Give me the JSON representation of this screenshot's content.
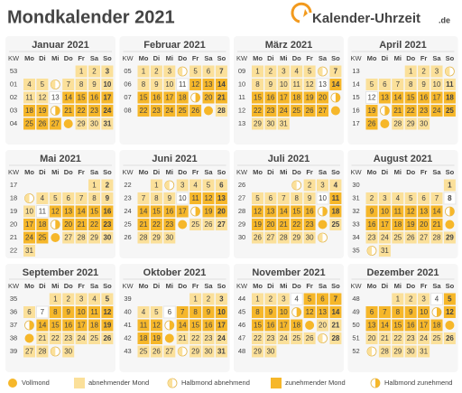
{
  "header": {
    "title": "Mondkalender 2021",
    "logo_name": "Kalender-Uhrzeit",
    "logo_tld": ".de"
  },
  "weekdays": [
    "KW",
    "Mo",
    "Di",
    "Mi",
    "Do",
    "Fr",
    "Sa",
    "So"
  ],
  "colors": {
    "a": "#fbe09a",
    "z": "#f6b72a",
    "n": "#ffffff",
    "F": "#f6b72a",
    "H": "#fbe09a",
    "Z": "#f6b72a"
  },
  "months": [
    {
      "title": "Januar 2021",
      "weeks": [
        {
          "kw": "53",
          "days": [
            null,
            null,
            null,
            null,
            1,
            2,
            3
          ],
          "phases": "    aaa"
        },
        {
          "kw": "01",
          "days": [
            4,
            5,
            null,
            7,
            8,
            9,
            10
          ],
          "phases": "aaHaaaa"
        },
        {
          "kw": "02",
          "days": [
            11,
            12,
            13,
            14,
            15,
            16,
            17
          ],
          "phases": "aanzzzz"
        },
        {
          "kw": "03",
          "days": [
            18,
            19,
            null,
            21,
            22,
            23,
            24
          ],
          "phases": "zzZzzzz"
        },
        {
          "kw": "04",
          "days": [
            25,
            26,
            27,
            null,
            29,
            30,
            31
          ],
          "phases": "zzzFaaa"
        }
      ]
    },
    {
      "title": "Februar 2021",
      "weeks": [
        {
          "kw": "05",
          "days": [
            1,
            2,
            3,
            null,
            5,
            6,
            7
          ],
          "phases": "aaaHaaa"
        },
        {
          "kw": "06",
          "days": [
            8,
            9,
            10,
            11,
            12,
            13,
            14
          ],
          "phases": "aaanzzz"
        },
        {
          "kw": "07",
          "days": [
            15,
            16,
            17,
            18,
            null,
            20,
            21
          ],
          "phases": "zzzzZzz"
        },
        {
          "kw": "08",
          "days": [
            22,
            23,
            24,
            25,
            26,
            null,
            28
          ],
          "phases": "zzzzzFa"
        }
      ]
    },
    {
      "title": "März 2021",
      "weeks": [
        {
          "kw": "09",
          "days": [
            1,
            2,
            3,
            4,
            5,
            null,
            7
          ],
          "phases": "aaaaaHa"
        },
        {
          "kw": "10",
          "days": [
            8,
            9,
            10,
            11,
            12,
            13,
            14
          ],
          "phases": "aaaaanz"
        },
        {
          "kw": "11",
          "days": [
            15,
            16,
            17,
            18,
            19,
            20,
            null
          ],
          "phases": "zzzzzzZ"
        },
        {
          "kw": "12",
          "days": [
            22,
            23,
            24,
            25,
            26,
            27,
            null
          ],
          "phases": "zzzzzzF"
        },
        {
          "kw": "13",
          "days": [
            29,
            30,
            31,
            null,
            null,
            null,
            null
          ],
          "phases": "aaa    "
        }
      ]
    },
    {
      "title": "April 2021",
      "weeks": [
        {
          "kw": "13",
          "days": [
            null,
            null,
            null,
            1,
            2,
            3,
            null
          ],
          "phases": "   aaaH"
        },
        {
          "kw": "14",
          "days": [
            5,
            6,
            7,
            8,
            9,
            10,
            11
          ],
          "phases": "aaaaaaa"
        },
        {
          "kw": "15",
          "days": [
            12,
            13,
            14,
            15,
            16,
            17,
            18
          ],
          "phases": "nzzzzzz"
        },
        {
          "kw": "16",
          "days": [
            19,
            null,
            21,
            22,
            23,
            24,
            25
          ],
          "phases": "zZzzzzz"
        },
        {
          "kw": "17",
          "days": [
            26,
            null,
            28,
            29,
            30,
            null,
            null
          ],
          "phases": "zFaaa  "
        }
      ]
    },
    {
      "title": "Mai 2021",
      "weeks": [
        {
          "kw": "17",
          "days": [
            null,
            null,
            null,
            null,
            null,
            1,
            2
          ],
          "phases": "     aa"
        },
        {
          "kw": "18",
          "days": [
            null,
            4,
            5,
            6,
            7,
            8,
            9
          ],
          "phases": "Haaaaaa"
        },
        {
          "kw": "19",
          "days": [
            10,
            11,
            12,
            13,
            14,
            15,
            16
          ],
          "phases": "anzzzzz"
        },
        {
          "kw": "20",
          "days": [
            17,
            18,
            null,
            20,
            21,
            22,
            23
          ],
          "phases": "zzZzzzz"
        },
        {
          "kw": "21",
          "days": [
            24,
            25,
            null,
            27,
            28,
            29,
            30
          ],
          "phases": "zzFaaaa"
        },
        {
          "kw": "22",
          "days": [
            31,
            null,
            null,
            null,
            null,
            null,
            null
          ],
          "phases": "a      "
        }
      ]
    },
    {
      "title": "Juni 2021",
      "weeks": [
        {
          "kw": "22",
          "days": [
            null,
            1,
            null,
            3,
            4,
            5,
            6
          ],
          "phases": " aHaaaa"
        },
        {
          "kw": "23",
          "days": [
            7,
            8,
            9,
            10,
            11,
            12,
            13
          ],
          "phases": "aaanzzz"
        },
        {
          "kw": "24",
          "days": [
            14,
            15,
            16,
            17,
            null,
            19,
            20
          ],
          "phases": "zzzzZzz"
        },
        {
          "kw": "25",
          "days": [
            21,
            22,
            23,
            null,
            25,
            26,
            27
          ],
          "phases": "zzzFaaa"
        },
        {
          "kw": "26",
          "days": [
            28,
            29,
            30,
            null,
            null,
            null,
            null
          ],
          "phases": "aaa    "
        }
      ]
    },
    {
      "title": "Juli 2021",
      "weeks": [
        {
          "kw": "26",
          "days": [
            null,
            null,
            null,
            null,
            2,
            3,
            4
          ],
          "phases": "   Haaa"
        },
        {
          "kw": "27",
          "days": [
            5,
            6,
            7,
            8,
            9,
            10,
            11
          ],
          "phases": "aaaaanz"
        },
        {
          "kw": "28",
          "days": [
            12,
            13,
            14,
            15,
            16,
            null,
            18
          ],
          "phases": "zzzzzZz"
        },
        {
          "kw": "29",
          "days": [
            19,
            20,
            21,
            22,
            23,
            null,
            25
          ],
          "phases": "zzzzzFa"
        },
        {
          "kw": "30",
          "days": [
            26,
            27,
            28,
            29,
            30,
            null,
            null
          ],
          "phases": "aaaaaH "
        }
      ]
    },
    {
      "title": "August 2021",
      "weeks": [
        {
          "kw": "30",
          "days": [
            null,
            null,
            null,
            null,
            null,
            null,
            1
          ],
          "phases": "      a"
        },
        {
          "kw": "31",
          "days": [
            2,
            3,
            4,
            5,
            6,
            7,
            8
          ],
          "phases": "aaaaaan"
        },
        {
          "kw": "32",
          "days": [
            9,
            10,
            11,
            12,
            13,
            14,
            null
          ],
          "phases": "zzzzzzZ"
        },
        {
          "kw": "33",
          "days": [
            16,
            17,
            18,
            19,
            20,
            21,
            null
          ],
          "phases": "zzzzzzF"
        },
        {
          "kw": "34",
          "days": [
            23,
            24,
            25,
            26,
            27,
            28,
            29
          ],
          "phases": "aaaaaaa"
        },
        {
          "kw": "35",
          "days": [
            null,
            31,
            null,
            null,
            null,
            null,
            null
          ],
          "phases": "Ha     "
        }
      ]
    },
    {
      "title": "September 2021",
      "weeks": [
        {
          "kw": "35",
          "days": [
            null,
            null,
            1,
            2,
            3,
            4,
            5
          ],
          "phases": "  aaaaa"
        },
        {
          "kw": "36",
          "days": [
            6,
            7,
            8,
            9,
            10,
            11,
            12
          ],
          "phases": "anzzzzz"
        },
        {
          "kw": "37",
          "days": [
            null,
            14,
            15,
            16,
            17,
            18,
            19
          ],
          "phases": "Zzzzzzz"
        },
        {
          "kw": "38",
          "days": [
            null,
            21,
            22,
            23,
            24,
            25,
            26
          ],
          "phases": "Faaaaaa"
        },
        {
          "kw": "39",
          "days": [
            27,
            28,
            null,
            30,
            null,
            null,
            null
          ],
          "phases": "aaHa   "
        }
      ]
    },
    {
      "title": "Oktober 2021",
      "weeks": [
        {
          "kw": "39",
          "days": [
            null,
            null,
            null,
            null,
            1,
            2,
            3
          ],
          "phases": "    aaa"
        },
        {
          "kw": "40",
          "days": [
            4,
            5,
            6,
            7,
            8,
            9,
            10
          ],
          "phases": "aanzzzz"
        },
        {
          "kw": "41",
          "days": [
            11,
            12,
            null,
            14,
            15,
            16,
            17
          ],
          "phases": "zzZzzzz"
        },
        {
          "kw": "42",
          "days": [
            18,
            19,
            null,
            21,
            22,
            23,
            24
          ],
          "phases": "zzFaaaa"
        },
        {
          "kw": "43",
          "days": [
            25,
            26,
            27,
            null,
            29,
            30,
            31
          ],
          "phases": "aaaHaaa"
        }
      ]
    },
    {
      "title": "November 2021",
      "weeks": [
        {
          "kw": "44",
          "days": [
            1,
            2,
            3,
            4,
            5,
            6,
            7
          ],
          "phases": "aaanzzz"
        },
        {
          "kw": "45",
          "days": [
            8,
            9,
            10,
            null,
            12,
            13,
            14
          ],
          "phases": "zzzZzzz"
        },
        {
          "kw": "46",
          "days": [
            15,
            16,
            17,
            18,
            null,
            20,
            21
          ],
          "phases": "zzzzFaa"
        },
        {
          "kw": "47",
          "days": [
            22,
            23,
            24,
            25,
            26,
            null,
            28
          ],
          "phases": "aaaaaHa"
        },
        {
          "kw": "48",
          "days": [
            29,
            30,
            null,
            null,
            null,
            null,
            null
          ],
          "phases": "aa     "
        }
      ]
    },
    {
      "title": "Dezember 2021",
      "weeks": [
        {
          "kw": "48",
          "days": [
            null,
            null,
            1,
            2,
            3,
            4,
            5
          ],
          "phases": "  aaanz"
        },
        {
          "kw": "49",
          "days": [
            6,
            7,
            8,
            9,
            10,
            null,
            12
          ],
          "phases": "zzzzzZz"
        },
        {
          "kw": "50",
          "days": [
            13,
            14,
            15,
            16,
            17,
            18,
            null
          ],
          "phases": "zzzzzzF"
        },
        {
          "kw": "51",
          "days": [
            20,
            21,
            22,
            23,
            24,
            25,
            26
          ],
          "phases": "aaaaaaa"
        },
        {
          "kw": "52",
          "days": [
            null,
            28,
            29,
            30,
            31,
            null,
            null
          ],
          "phases": "Haaaa  "
        }
      ]
    }
  ],
  "legend": [
    {
      "label": "Vollmond",
      "phase": "F"
    },
    {
      "label": "abnehmender Mond",
      "phase": "a"
    },
    {
      "label": "Halbmond abnehmend",
      "phase": "H"
    },
    {
      "label": "zunehmender Mond",
      "phase": "z"
    },
    {
      "label": "Halbmond zunehmend",
      "phase": "Z"
    }
  ]
}
